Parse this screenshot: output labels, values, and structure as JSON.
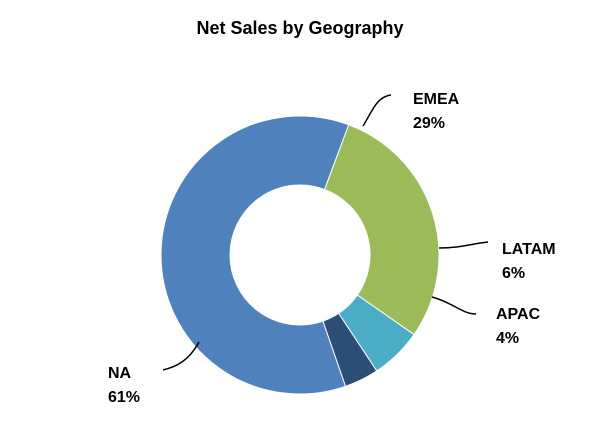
{
  "chart_data": {
    "type": "pie",
    "variant": "donut",
    "title": "Net Sales by Geography",
    "slices": [
      {
        "label": "EMEA",
        "value": 29,
        "value_label": "29%",
        "color": "#9BBB59"
      },
      {
        "label": "LATAM",
        "value": 6,
        "value_label": "6%",
        "color": "#4BACC6"
      },
      {
        "label": "APAC",
        "value": 4,
        "value_label": "4%",
        "color": "#2C4D75"
      },
      {
        "label": "NA",
        "value": 61,
        "value_label": "61%",
        "color": "#4F81BD"
      }
    ],
    "legend": "none",
    "data_labels": "outside-with-leader-lines"
  }
}
